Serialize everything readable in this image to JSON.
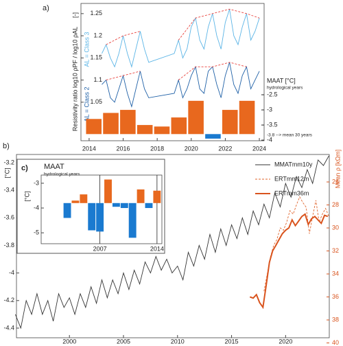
{
  "chart_data": [
    {
      "type": "line",
      "label": "a)",
      "y_label": "Resistivity ratio  log10 ρPF / log10 ρAL",
      "y_unit": "[-]",
      "xlim": [
        2013.52,
        2024.28
      ],
      "xticks": [
        2014,
        2016,
        2018,
        2020,
        2022,
        2024
      ],
      "ylim": [
        0.963,
        1.273
      ],
      "yticks": [
        1.05,
        1.1,
        1.15,
        1.2,
        1.25
      ],
      "y2lim": [
        -4.02,
        0.52
      ],
      "y2ticks": [
        -2.5,
        -3,
        -3.5,
        -4
      ],
      "x": [
        2014.75,
        2015.0,
        2015.25,
        2015.5,
        2015.75,
        2016.0,
        2016.25,
        2016.5,
        2016.75,
        2017.0,
        2017.25,
        2017.5,
        2019.0,
        2019.25,
        2019.5,
        2019.75,
        2020.0,
        2020.25,
        2020.5,
        2020.75,
        2021.0,
        2021.25,
        2021.5,
        2021.75,
        2022.0,
        2022.25,
        2022.5,
        2022.75,
        2023.0,
        2023.25,
        2023.5,
        2023.75,
        2024.0
      ],
      "series": [
        {
          "name": "AL = Class 3",
          "color": "#5ab4e6",
          "values": [
            1.16,
            1.18,
            1.15,
            1.13,
            1.16,
            1.2,
            1.16,
            1.13,
            1.17,
            1.21,
            1.17,
            1.14,
            1.16,
            1.19,
            1.15,
            1.17,
            1.22,
            1.24,
            1.19,
            1.17,
            1.22,
            1.25,
            1.2,
            1.17,
            1.23,
            1.26,
            1.2,
            1.18,
            1.22,
            1.25,
            1.19,
            1.21,
            1.24
          ]
        },
        {
          "name": "AL = Class 2",
          "color": "#1d5fa6",
          "values": [
            1.09,
            1.1,
            1.06,
            1.05,
            1.08,
            1.11,
            1.07,
            1.04,
            1.08,
            1.12,
            1.08,
            1.06,
            1.07,
            1.1,
            1.06,
            1.08,
            1.11,
            1.13,
            1.08,
            1.07,
            1.12,
            1.13,
            1.09,
            1.06,
            1.11,
            1.14,
            1.09,
            1.07,
            1.11,
            1.13,
            1.08,
            1.1,
            1.12
          ]
        },
        {
          "type": "envelope",
          "color": "#e8413c",
          "dash": true,
          "x": [
            2015.0,
            2016.0,
            2017.0,
            2018.0,
            2019.25,
            2020.25,
            2021.25,
            2022.25,
            2023.25,
            2024.0
          ],
          "values": [
            1.18,
            1.2,
            1.21,
            null,
            1.19,
            1.24,
            1.25,
            1.26,
            1.25,
            1.24
          ]
        },
        {
          "type": "envelope",
          "color": "#e8413c",
          "dash": true,
          "x": [
            2015.0,
            2016.0,
            2017.0,
            2018.0,
            2019.25,
            2020.25,
            2021.25,
            2022.25,
            2023.25
          ],
          "values": [
            1.1,
            1.11,
            1.12,
            null,
            1.1,
            1.13,
            1.13,
            1.14,
            1.13
          ]
        },
        {
          "type": "bar",
          "name": "MAAT [°C]",
          "subtitle": "hydrological years",
          "axis": "y2",
          "base": -3.8,
          "color_above": "#e8681e",
          "color_below": "#1a7ad0",
          "x": [
            2014,
            2015,
            2016,
            2017,
            2018,
            2019,
            2020,
            2021,
            2022,
            2023
          ],
          "values": [
            -3.3,
            -3.1,
            -3.0,
            -3.5,
            -3.55,
            -3.25,
            -2.7,
            -3.95,
            -3.0,
            -2.7
          ]
        }
      ],
      "annotation": "-3.8 --> mean 30 years"
    },
    {
      "type": "line",
      "label": "b)",
      "y_label": "[°C]",
      "y2_label": "Mean ρ [kΩm]",
      "y2_color": "#d9541e",
      "legend": "upper right",
      "xlim": [
        1995.1,
        2024.04
      ],
      "xticks": [
        2000,
        2005,
        2010,
        2015,
        2020
      ],
      "ylim": [
        -4.47,
        -3.14
      ],
      "yticks": [
        -3.2,
        -3.4,
        -3.6,
        -3.8,
        -4,
        -4.2,
        -4.4
      ],
      "y2lim": [
        39.55,
        23.61
      ],
      "y2ticks": [
        26,
        28,
        30,
        32,
        34,
        36,
        38,
        40
      ],
      "series": [
        {
          "name": "MMATmm10y",
          "color": "#333333",
          "x": [
            1995.0,
            1995.5,
            1996.0,
            1996.5,
            1997.0,
            1997.5,
            1998.0,
            1998.5,
            1999.0,
            1999.5,
            2000.0,
            2000.5,
            2001.0,
            2001.5,
            2002.0,
            2002.5,
            2003.0,
            2003.5,
            2004.0,
            2004.5,
            2005.0,
            2005.5,
            2006.0,
            2006.5,
            2007.0,
            2007.5,
            2008.0,
            2008.5,
            2009.0,
            2009.5,
            2010.0,
            2010.5,
            2011.0,
            2011.5,
            2012.0,
            2012.5,
            2013.0,
            2013.5,
            2014.0,
            2014.5,
            2015.0,
            2015.5,
            2016.0,
            2016.5,
            2017.0,
            2017.5,
            2018.0,
            2018.5,
            2019.0,
            2019.5,
            2020.0,
            2020.5,
            2021.0,
            2021.5,
            2022.0,
            2022.5,
            2023.0,
            2023.5,
            2024.0
          ],
          "values": [
            -4.3,
            -4.4,
            -4.2,
            -4.3,
            -4.15,
            -4.3,
            -4.2,
            -4.35,
            -4.15,
            -4.25,
            -4.18,
            -4.3,
            -4.15,
            -4.25,
            -4.1,
            -4.22,
            -4.05,
            -4.18,
            -4.05,
            -4.15,
            -4.0,
            -4.12,
            -3.98,
            -4.08,
            -3.92,
            -4.0,
            -3.88,
            -3.98,
            -3.9,
            -4.0,
            -3.95,
            -4.05,
            -3.85,
            -3.95,
            -3.8,
            -3.9,
            -3.72,
            -3.85,
            -3.68,
            -3.8,
            -3.65,
            -3.75,
            -3.6,
            -3.72,
            -3.55,
            -3.65,
            -3.5,
            -3.6,
            -3.42,
            -3.52,
            -3.35,
            -3.45,
            -3.3,
            -3.38,
            -3.25,
            -3.35,
            -3.18,
            -3.22,
            -3.15
          ]
        },
        {
          "name": "ERTmm12m",
          "color": "#e0632a",
          "dash": true,
          "axis": "y2",
          "x": [
            2018.0,
            2018.3,
            2018.6,
            2018.9,
            2019.2,
            2019.5,
            2019.8,
            2020.1,
            2020.4,
            2020.7,
            2021.0,
            2021.3,
            2021.6,
            2021.9,
            2022.2,
            2022.5,
            2022.8,
            2023.1,
            2023.4,
            2023.7,
            2024.0
          ],
          "values": [
            35.5,
            34.0,
            32.5,
            31.5,
            31.0,
            30.0,
            30.2,
            29.5,
            28.5,
            28.8,
            28.0,
            27.3,
            27.8,
            28.2,
            30.5,
            29.0,
            27.6,
            29.5,
            28.8,
            28.3,
            29.0
          ]
        },
        {
          "name": "ERTmm36m",
          "color": "#d9541e",
          "axis": "y2",
          "line_width": 2,
          "x": [
            2016.7,
            2017.0,
            2017.3,
            2017.6,
            2017.9,
            2018.2,
            2018.5,
            2018.8,
            2019.1,
            2019.4,
            2019.7,
            2020.0,
            2020.3,
            2020.6,
            2020.9,
            2021.2,
            2021.5,
            2021.8,
            2022.1,
            2022.4,
            2022.7,
            2023.0,
            2023.3,
            2023.6,
            2023.9
          ],
          "values": [
            36.0,
            36.1,
            35.8,
            36.5,
            36.9,
            35.0,
            33.0,
            32.0,
            31.5,
            31.0,
            30.5,
            30.2,
            30.0,
            29.3,
            29.8,
            29.4,
            29.0,
            28.8,
            29.7,
            29.2,
            29.0,
            29.3,
            29.6,
            28.9,
            29.0
          ]
        }
      ]
    },
    {
      "type": "bar",
      "label": "c)",
      "title": "MAAT",
      "subtitle": "hydrological years",
      "y_label": "[°C]",
      "xlim": [
        1999.8,
        2014.6
      ],
      "xticks": [
        2007,
        2014
      ],
      "xgrid": true,
      "ylim": [
        -5.44,
        -2.67
      ],
      "yticks": [
        -3,
        -4,
        -5
      ],
      "base": -3.8,
      "color_above": "#e8681e",
      "color_below": "#1a7ad0",
      "x": [
        2003,
        2004,
        2005,
        2006,
        2007,
        2008,
        2009,
        2010,
        2011,
        2012,
        2013,
        2014
      ],
      "values": [
        -4.4,
        -3.7,
        -3.45,
        -4.9,
        -4.95,
        -2.85,
        -3.95,
        -4.0,
        -5.2,
        -3.25,
        -4.0,
        -3.3
      ]
    }
  ]
}
